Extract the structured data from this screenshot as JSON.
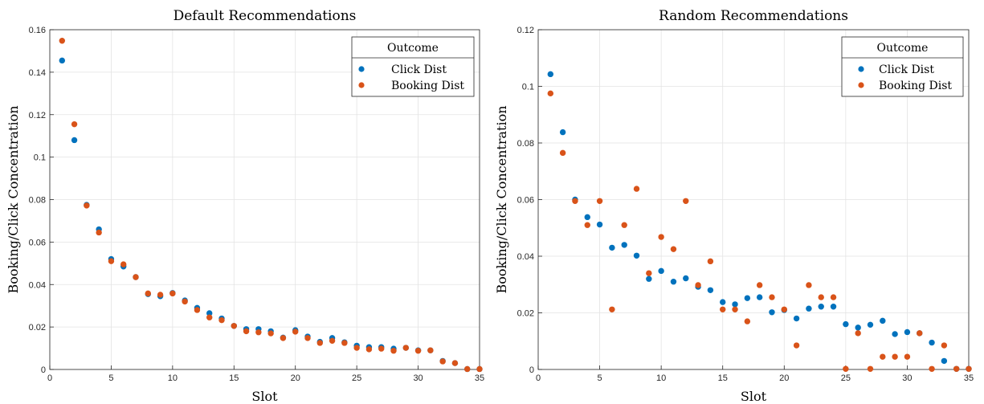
{
  "chart_data": [
    {
      "type": "scatter",
      "title": "Default Recommendations",
      "xlabel": "Slot",
      "ylabel": "Booking/Click Concentration",
      "xlim": [
        0,
        35
      ],
      "ylim": [
        0,
        0.16
      ],
      "xticks": [
        0,
        5,
        10,
        15,
        20,
        25,
        30,
        35
      ],
      "yticks": [
        0,
        0.02,
        0.04,
        0.06,
        0.08,
        0.1,
        0.12,
        0.14,
        0.16
      ],
      "ytick_labels": [
        "0",
        "0.02",
        "0.04",
        "0.06",
        "0.08",
        "0.1",
        "0.12",
        "0.14",
        "0.16"
      ],
      "grid": true,
      "legend": {
        "title": "Outcome",
        "placement": "top-right"
      },
      "x": [
        1,
        2,
        3,
        4,
        5,
        6,
        7,
        8,
        9,
        10,
        11,
        12,
        13,
        14,
        15,
        16,
        17,
        18,
        19,
        20,
        21,
        22,
        23,
        24,
        25,
        26,
        27,
        28,
        29,
        30,
        31,
        32,
        33,
        34,
        35
      ],
      "series": [
        {
          "name": "Click Dist",
          "color": "#0072BD",
          "values": [
            0.1455,
            0.108,
            0.0775,
            0.066,
            0.052,
            0.0485,
            0.0435,
            0.0355,
            0.0345,
            0.036,
            0.0325,
            0.029,
            0.0265,
            0.024,
            0.0205,
            0.019,
            0.019,
            0.018,
            0.015,
            0.0185,
            0.0155,
            0.013,
            0.0148,
            0.0128,
            0.0112,
            0.0105,
            0.0105,
            0.0098,
            0.0102,
            0.009,
            0.009,
            0.004,
            0.003,
            0.0002,
            0.0002
          ]
        },
        {
          "name": "Booking Dist",
          "color": "#D95319",
          "values": [
            0.1548,
            0.1155,
            0.0772,
            0.0645,
            0.051,
            0.0495,
            0.0435,
            0.0358,
            0.0352,
            0.0358,
            0.032,
            0.028,
            0.0245,
            0.0232,
            0.0205,
            0.018,
            0.0175,
            0.017,
            0.0148,
            0.0178,
            0.0148,
            0.0125,
            0.0135,
            0.0125,
            0.0102,
            0.0095,
            0.0098,
            0.0088,
            0.0102,
            0.0088,
            0.009,
            0.0038,
            0.003,
            0.0002,
            0.0002
          ]
        }
      ]
    },
    {
      "type": "scatter",
      "title": "Random Recommendations",
      "xlabel": "Slot",
      "ylabel": "Booking/Click Concentration",
      "xlim": [
        0,
        35
      ],
      "ylim": [
        0,
        0.12
      ],
      "xticks": [
        0,
        5,
        10,
        15,
        20,
        25,
        30,
        35
      ],
      "yticks": [
        0,
        0.02,
        0.04,
        0.06,
        0.08,
        0.1,
        0.12
      ],
      "ytick_labels": [
        "0",
        "0.02",
        "0.04",
        "0.06",
        "0.08",
        "0.1",
        "0.12"
      ],
      "grid": true,
      "legend": {
        "title": "Outcome",
        "placement": "top-right"
      },
      "x": [
        1,
        2,
        3,
        4,
        5,
        6,
        7,
        8,
        9,
        10,
        11,
        12,
        13,
        14,
        15,
        16,
        17,
        18,
        19,
        20,
        21,
        22,
        23,
        24,
        25,
        26,
        27,
        28,
        29,
        30,
        31,
        32,
        33,
        34,
        35
      ],
      "series": [
        {
          "name": "Click Dist",
          "color": "#0072BD",
          "values": [
            0.1043,
            0.0838,
            0.06,
            0.0538,
            0.0512,
            0.043,
            0.044,
            0.0402,
            0.032,
            0.0348,
            0.031,
            0.0322,
            0.0292,
            0.028,
            0.0238,
            0.023,
            0.0252,
            0.0255,
            0.0202,
            0.021,
            0.018,
            0.0215,
            0.0222,
            0.0222,
            0.016,
            0.0148,
            0.0158,
            0.0172,
            0.0125,
            0.0132,
            0.0128,
            0.0095,
            0.003,
            0.0002,
            0.0002
          ]
        },
        {
          "name": "Booking Dist",
          "color": "#D95319",
          "values": [
            0.0975,
            0.0765,
            0.0595,
            0.051,
            0.0595,
            0.0212,
            0.051,
            0.0638,
            0.034,
            0.0468,
            0.0425,
            0.0595,
            0.0298,
            0.0382,
            0.0212,
            0.0212,
            0.017,
            0.0298,
            0.0255,
            0.0212,
            0.0085,
            0.0298,
            0.0255,
            0.0255,
            0.0002,
            0.0128,
            0.0002,
            0.0045,
            0.0045,
            0.0045,
            0.0128,
            0.0002,
            0.0085,
            0.0002,
            0.0002
          ]
        }
      ]
    }
  ]
}
